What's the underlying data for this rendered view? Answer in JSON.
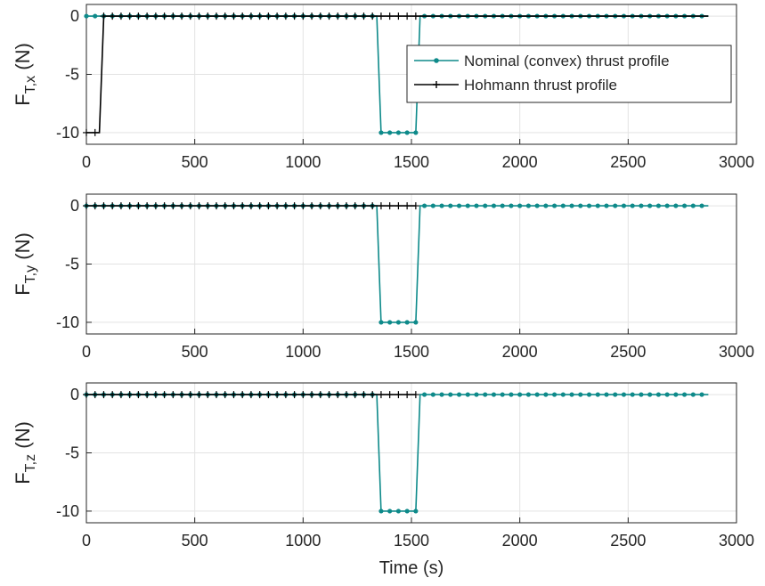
{
  "figure": {
    "xlabel": "Time (s)",
    "colors": {
      "nominal": "#0e8a8a",
      "hohmann": "#000000",
      "grid": "#e3e3e3",
      "axis": "#262626"
    }
  },
  "legend": {
    "placement": "top-right of first panel",
    "entries": [
      "Nominal (convex) thrust profile",
      "Hohmann thrust profile"
    ]
  },
  "chart_data": [
    {
      "type": "line",
      "ylabel_main": "F",
      "ylabel_sub": "T,x",
      "ylabel_unit": " (N)",
      "xlim": [
        0,
        3000
      ],
      "ylim": [
        -11,
        1
      ],
      "grid": true,
      "xticks": [
        "0",
        "500",
        "1000",
        "1500",
        "2000",
        "2500",
        "3000"
      ],
      "yticks": [
        0,
        -5,
        -10
      ],
      "series": [
        {
          "name": "Nominal (convex) thrust profile",
          "marker": "dot",
          "x": [
            0,
            1340,
            1360,
            1520,
            1540,
            2870
          ],
          "y": [
            0,
            0,
            -10,
            -10,
            0,
            0
          ],
          "marker_step": 40,
          "marker_range": [
            0,
            2870
          ]
        },
        {
          "name": "Hohmann thrust profile",
          "marker": "plus",
          "x": [
            0,
            60,
            80,
            1520,
            1535,
            2870
          ],
          "y": [
            -10,
            -10,
            0,
            0,
            0,
            0
          ],
          "marker_step": 40,
          "marker_range": [
            0,
            1520
          ]
        }
      ]
    },
    {
      "type": "line",
      "ylabel_main": "F",
      "ylabel_sub": "T,y",
      "ylabel_unit": " (N)",
      "xlim": [
        0,
        3000
      ],
      "ylim": [
        -11,
        1
      ],
      "grid": true,
      "xticks": [
        "0",
        "500",
        "1000",
        "1500",
        "2000",
        "2500",
        "3000"
      ],
      "yticks": [
        0,
        -5,
        -10
      ],
      "series": [
        {
          "name": "Nominal (convex) thrust profile",
          "marker": "dot",
          "x": [
            0,
            1340,
            1360,
            1520,
            1540,
            2870
          ],
          "y": [
            0,
            0,
            -10,
            -10,
            0,
            0
          ],
          "marker_step": 40,
          "marker_range": [
            0,
            2870
          ]
        },
        {
          "name": "Hohmann thrust profile",
          "marker": "plus",
          "x": [
            0,
            1520
          ],
          "y": [
            0,
            0
          ],
          "marker_step": 40,
          "marker_range": [
            0,
            1520
          ]
        }
      ]
    },
    {
      "type": "line",
      "ylabel_main": "F",
      "ylabel_sub": "T,z",
      "ylabel_unit": " (N)",
      "xlim": [
        0,
        3000
      ],
      "ylim": [
        -11,
        1
      ],
      "grid": true,
      "xticks": [
        "0",
        "500",
        "1000",
        "1500",
        "2000",
        "2500",
        "3000"
      ],
      "yticks": [
        0,
        -5,
        -10
      ],
      "series": [
        {
          "name": "Nominal (convex) thrust profile",
          "marker": "dot",
          "x": [
            0,
            1340,
            1360,
            1520,
            1540,
            2870
          ],
          "y": [
            0,
            0,
            -10,
            -10,
            0,
            0
          ],
          "marker_step": 40,
          "marker_range": [
            0,
            2870
          ]
        },
        {
          "name": "Hohmann thrust profile",
          "marker": "plus",
          "x": [
            0,
            1520
          ],
          "y": [
            0,
            0
          ],
          "marker_step": 40,
          "marker_range": [
            0,
            1520
          ]
        }
      ]
    }
  ]
}
